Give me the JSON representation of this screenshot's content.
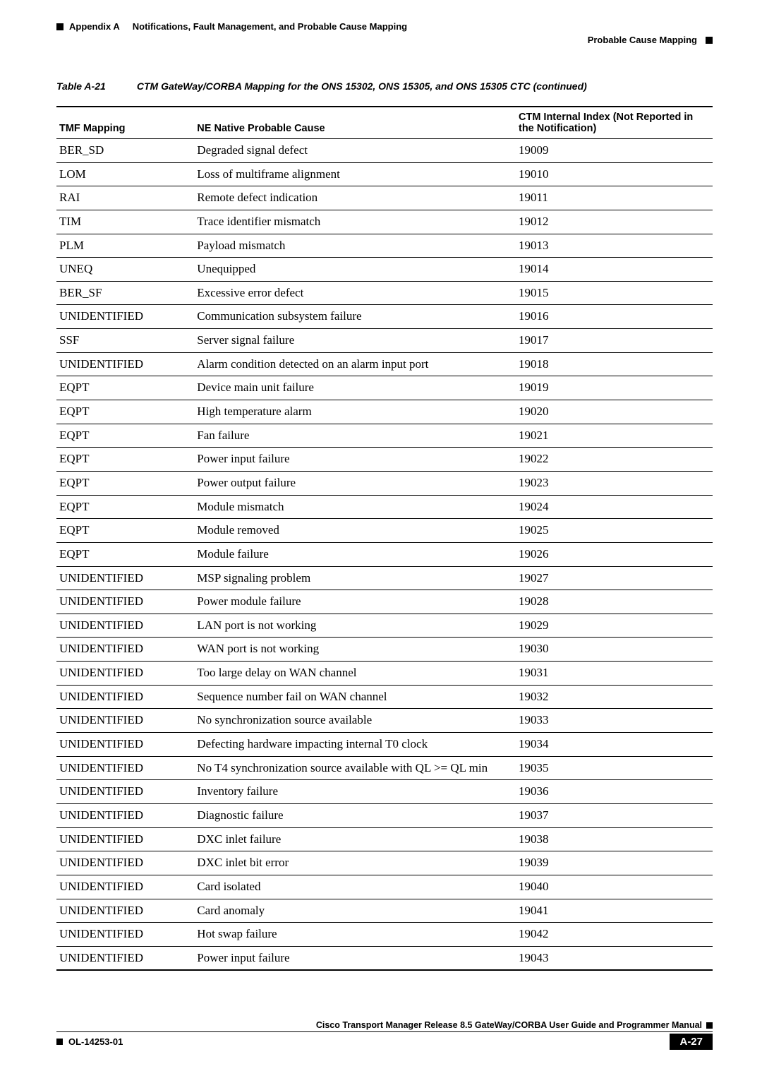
{
  "header": {
    "appendix": "Appendix A",
    "title": "Notifications, Fault Management, and Probable Cause Mapping",
    "section": "Probable Cause Mapping"
  },
  "caption": {
    "label": "Table A-21",
    "text": "CTM GateWay/CORBA Mapping for the ONS 15302, ONS 15305, and ONS 15305 CTC (continued)"
  },
  "table": {
    "headers": {
      "tmf": "TMF Mapping",
      "cause": "NE Native Probable Cause",
      "idx": "CTM Internal Index (Not Reported in the Notification)"
    },
    "rows": [
      {
        "tmf": "BER_SD",
        "cause": "Degraded signal defect",
        "idx": "19009"
      },
      {
        "tmf": "LOM",
        "cause": "Loss of multiframe alignment",
        "idx": "19010"
      },
      {
        "tmf": "RAI",
        "cause": "Remote defect indication",
        "idx": "19011"
      },
      {
        "tmf": "TIM",
        "cause": "Trace identifier mismatch",
        "idx": "19012"
      },
      {
        "tmf": "PLM",
        "cause": "Payload mismatch",
        "idx": "19013"
      },
      {
        "tmf": "UNEQ",
        "cause": "Unequipped",
        "idx": "19014"
      },
      {
        "tmf": "BER_SF",
        "cause": "Excessive error defect",
        "idx": "19015"
      },
      {
        "tmf": "UNIDENTIFIED",
        "cause": "Communication subsystem failure",
        "idx": "19016"
      },
      {
        "tmf": "SSF",
        "cause": "Server signal failure",
        "idx": "19017"
      },
      {
        "tmf": "UNIDENTIFIED",
        "cause": "Alarm condition detected on an alarm input port",
        "idx": "19018"
      },
      {
        "tmf": "EQPT",
        "cause": "Device main unit failure",
        "idx": "19019"
      },
      {
        "tmf": "EQPT",
        "cause": "High temperature alarm",
        "idx": "19020"
      },
      {
        "tmf": "EQPT",
        "cause": "Fan failure",
        "idx": "19021"
      },
      {
        "tmf": "EQPT",
        "cause": "Power input failure",
        "idx": "19022"
      },
      {
        "tmf": "EQPT",
        "cause": "Power output failure",
        "idx": "19023"
      },
      {
        "tmf": "EQPT",
        "cause": "Module mismatch",
        "idx": "19024"
      },
      {
        "tmf": "EQPT",
        "cause": "Module removed",
        "idx": "19025"
      },
      {
        "tmf": "EQPT",
        "cause": "Module failure",
        "idx": "19026"
      },
      {
        "tmf": "UNIDENTIFIED",
        "cause": "MSP signaling problem",
        "idx": "19027"
      },
      {
        "tmf": "UNIDENTIFIED",
        "cause": "Power module failure",
        "idx": "19028"
      },
      {
        "tmf": "UNIDENTIFIED",
        "cause": "LAN port is not working",
        "idx": "19029"
      },
      {
        "tmf": "UNIDENTIFIED",
        "cause": "WAN port is not working",
        "idx": "19030"
      },
      {
        "tmf": "UNIDENTIFIED",
        "cause": "Too large delay on WAN channel",
        "idx": "19031"
      },
      {
        "tmf": "UNIDENTIFIED",
        "cause": "Sequence number fail on WAN channel",
        "idx": "19032"
      },
      {
        "tmf": "UNIDENTIFIED",
        "cause": "No synchronization source available",
        "idx": "19033"
      },
      {
        "tmf": "UNIDENTIFIED",
        "cause": "Defecting hardware impacting internal T0 clock",
        "idx": "19034"
      },
      {
        "tmf": "UNIDENTIFIED",
        "cause": "No T4 synchronization source available with QL >= QL min",
        "idx": "19035"
      },
      {
        "tmf": "UNIDENTIFIED",
        "cause": "Inventory failure",
        "idx": "19036"
      },
      {
        "tmf": "UNIDENTIFIED",
        "cause": "Diagnostic failure",
        "idx": "19037"
      },
      {
        "tmf": "UNIDENTIFIED",
        "cause": "DXC inlet failure",
        "idx": "19038"
      },
      {
        "tmf": "UNIDENTIFIED",
        "cause": "DXC inlet bit error",
        "idx": "19039"
      },
      {
        "tmf": "UNIDENTIFIED",
        "cause": "Card isolated",
        "idx": "19040"
      },
      {
        "tmf": "UNIDENTIFIED",
        "cause": "Card anomaly",
        "idx": "19041"
      },
      {
        "tmf": "UNIDENTIFIED",
        "cause": "Hot swap failure",
        "idx": "19042"
      },
      {
        "tmf": "UNIDENTIFIED",
        "cause": "Power input failure",
        "idx": "19043"
      }
    ]
  },
  "footer": {
    "manual": "Cisco Transport Manager Release 8.5 GateWay/CORBA User Guide and Programmer Manual",
    "doc": "OL-14253-01",
    "page": "A-27"
  }
}
